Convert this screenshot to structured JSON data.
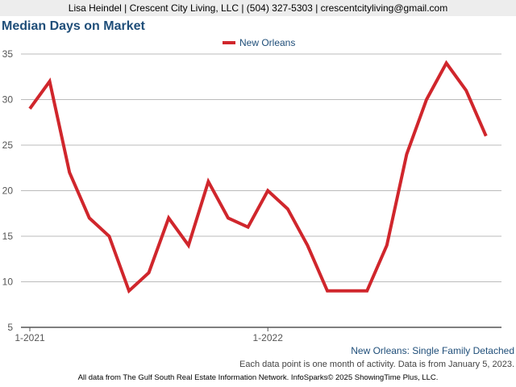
{
  "header": {
    "contact": "Lisa Heindel | Crescent City Living, LLC | (504) 327-5303 | crescentcityliving@gmail.com"
  },
  "footer": {
    "series_label": "New Orleans: Single Family Detached",
    "note": "Each data point is one month of activity. Data is from January 5, 2023.",
    "credit": "All data from The Gulf South Real Estate Information Network. InfoSparks© 2025 ShowingTime Plus, LLC."
  },
  "colors": {
    "line": "#d0262c",
    "title": "#1f4e79",
    "grid": "#bbbbbb"
  },
  "chart_data": {
    "type": "line",
    "title": "Median Days on Market",
    "xlabel": "",
    "ylabel": "",
    "ylim": [
      5,
      35
    ],
    "yticks": [
      5,
      10,
      15,
      20,
      25,
      30,
      35
    ],
    "x": [
      "2021-01",
      "2021-02",
      "2021-03",
      "2021-04",
      "2021-05",
      "2021-06",
      "2021-07",
      "2021-08",
      "2021-09",
      "2021-10",
      "2021-11",
      "2021-12",
      "2022-01",
      "2022-02",
      "2022-03",
      "2022-04",
      "2022-05",
      "2022-06",
      "2022-07",
      "2022-08",
      "2022-09",
      "2022-10",
      "2022-11",
      "2022-12"
    ],
    "xtick_labels": [
      {
        "index": 0,
        "label": "1-2021"
      },
      {
        "index": 12,
        "label": "1-2022"
      }
    ],
    "legend_position": "top-center",
    "grid": true,
    "series": [
      {
        "name": "New Orleans",
        "values": [
          29,
          32,
          22,
          17,
          15,
          9,
          11,
          17,
          14,
          21,
          17,
          16,
          20,
          18,
          14,
          9,
          9,
          9,
          14,
          24,
          30,
          34,
          31,
          26
        ]
      }
    ]
  }
}
